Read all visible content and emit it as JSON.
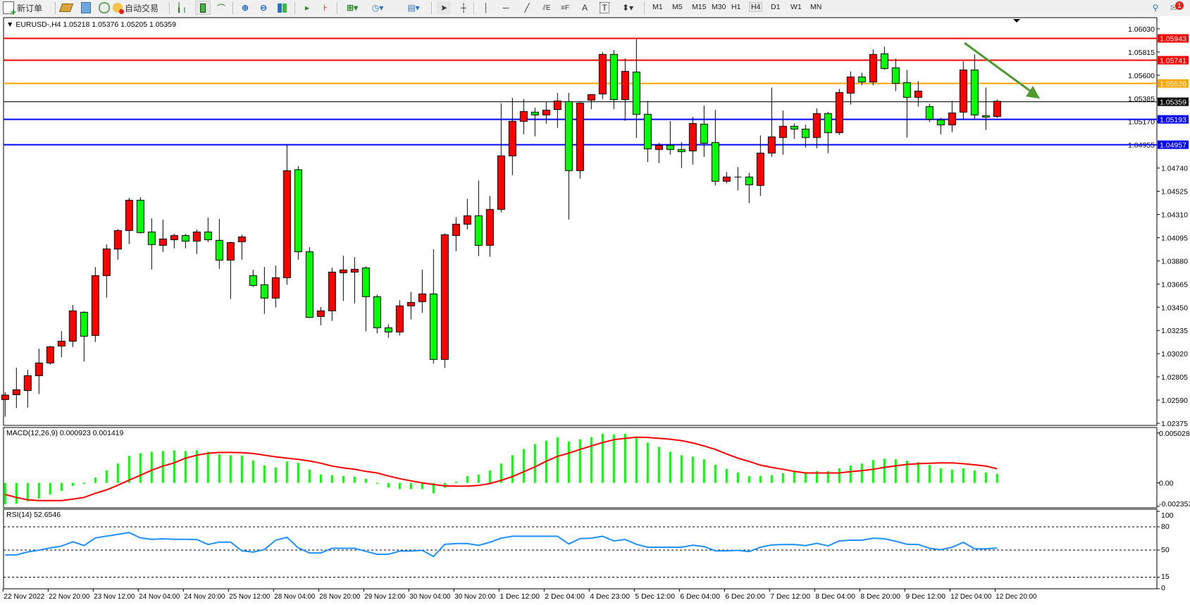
{
  "toolbar": {
    "new_order_label": "新订单",
    "auto_trading_label": "自动交易",
    "icons": [
      "new-order-icon",
      "market-watch-icon",
      "navigator-icon",
      "signals-icon",
      "auto-trading-icon",
      "bar-chart-icon",
      "candlestick-icon",
      "line-chart-icon",
      "zoom-in-icon",
      "zoom-out-icon",
      "tile-windows-icon",
      "auto-scroll-icon",
      "chart-shift-icon",
      "indicators-icon",
      "periods-icon",
      "templates-icon",
      "cursor-icon",
      "crosshair-icon",
      "vertical-line-icon",
      "horizontal-line-icon",
      "trendline-icon",
      "fibo-expansion-icon",
      "fibo-retracement-icon",
      "text-icon",
      "text-label-icon",
      "arrows-icon",
      "search-icon",
      "notifications-icon"
    ],
    "timeframes": [
      "M1",
      "M5",
      "M15",
      "M30",
      "H1",
      "H4",
      "D1",
      "W1",
      "MN"
    ],
    "active_timeframe": "H4",
    "notification_count": "1"
  },
  "chart_data": [
    {
      "type": "candlestick",
      "title": "EURUSD-,H4  1.05218 1.05376 1.05205 1.05359",
      "symbol": "EURUSD-",
      "timeframe": "H4",
      "last_ohlc": [
        "1.05218",
        "1.05376",
        "1.05205",
        "1.05359"
      ],
      "up_color": "#ff0000",
      "down_color": "#00ff00",
      "ylim": [
        1.02362,
        1.06134
      ],
      "y_ticks": [
        "1.06030",
        "1.05815",
        "1.05600",
        "1.05385",
        "1.05170",
        "1.04955",
        "1.04740",
        "1.04525",
        "1.04310",
        "1.04095",
        "1.03880",
        "1.03665",
        "1.03450",
        "1.03235",
        "1.03020",
        "1.02805",
        "1.02590",
        "1.02375"
      ],
      "x_tick_labels": [
        "22 Nov 2022",
        "22 Nov 20:00",
        "23 Nov 12:00",
        "24 Nov 04:00",
        "24 Nov 20:00",
        "25 Nov 12:00",
        "28 Nov 04:00",
        "28 Nov 20:00",
        "29 Nov 12:00",
        "30 Nov 04:00",
        "30 Nov 20:00",
        "1 Dec 12:00",
        "2 Dec 04:00",
        "4 Dec 23:00",
        "5 Dec 12:00",
        "6 Dec 04:00",
        "6 Dec 20:00",
        "7 Dec 12:00",
        "8 Dec 04:00",
        "8 Dec 20:00",
        "9 Dec 12:00",
        "12 Dec 04:00",
        "12 Dec 20:00"
      ],
      "x_tick_every_bars": 4,
      "ohlc": [
        [
          1.02595,
          1.02664,
          1.02436,
          1.02636
        ],
        [
          1.0264,
          1.0289,
          1.02516,
          1.02686
        ],
        [
          1.02679,
          1.02871,
          1.02521,
          1.02816
        ],
        [
          1.02816,
          1.03067,
          1.02647,
          1.02934
        ],
        [
          1.02934,
          1.03093,
          1.02919,
          1.03084
        ],
        [
          1.03091,
          1.0323,
          1.02986,
          1.03136
        ],
        [
          1.03136,
          1.03471,
          1.03082,
          1.03417
        ],
        [
          1.03404,
          1.03413,
          1.02947,
          1.03182
        ],
        [
          1.03189,
          1.03822,
          1.03128,
          1.03743
        ],
        [
          1.03743,
          1.04033,
          1.03539,
          1.03991
        ],
        [
          1.03989,
          1.04174,
          1.03891,
          1.04161
        ],
        [
          1.04161,
          1.04464,
          1.04035,
          1.04442
        ],
        [
          1.04442,
          1.0447,
          1.04133,
          1.04142
        ],
        [
          1.04148,
          1.04274,
          1.038,
          1.04031
        ],
        [
          1.04024,
          1.04261,
          1.03963,
          1.04083
        ],
        [
          1.04076,
          1.04131,
          1.03996,
          1.04115
        ],
        [
          1.04115,
          1.04131,
          1.03996,
          1.04063
        ],
        [
          1.04063,
          1.0417,
          1.03944,
          1.04148
        ],
        [
          1.04148,
          1.04281,
          1.04055,
          1.04076
        ],
        [
          1.0407,
          1.04268,
          1.03806,
          1.03887
        ],
        [
          1.03887,
          1.04057,
          1.03526,
          1.0405
        ],
        [
          1.04057,
          1.04122,
          1.03891,
          1.04102
        ],
        [
          1.03743,
          1.03798,
          1.03637,
          1.03652
        ],
        [
          1.03659,
          1.03824,
          1.03389,
          1.03535
        ],
        [
          1.03535,
          1.03837,
          1.03448,
          1.03724
        ],
        [
          1.03724,
          1.04955,
          1.03659,
          1.04716
        ],
        [
          1.04725,
          1.04757,
          1.03891,
          1.03965
        ],
        [
          1.03965,
          1.04007,
          1.0335,
          1.03356
        ],
        [
          1.03365,
          1.03452,
          1.03284,
          1.03417
        ],
        [
          1.03417,
          1.03817,
          1.03323,
          1.03776
        ],
        [
          1.0377,
          1.03928,
          1.03508,
          1.03796
        ],
        [
          1.03776,
          1.03915,
          1.03487,
          1.03802
        ],
        [
          1.03815,
          1.03828,
          1.03226,
          1.03548
        ],
        [
          1.03548,
          1.03567,
          1.03208,
          1.0326
        ],
        [
          1.0326,
          1.03293,
          1.03167,
          1.03221
        ],
        [
          1.03221,
          1.03515,
          1.03189,
          1.03463
        ],
        [
          1.03463,
          1.03593,
          1.03339,
          1.03495
        ],
        [
          1.03502,
          1.03798,
          1.03398,
          1.03574
        ],
        [
          1.03574,
          1.03987,
          1.02928,
          1.02967
        ],
        [
          1.02967,
          1.04135,
          1.02888,
          1.04122
        ],
        [
          1.04115,
          1.04285,
          1.0397,
          1.0422
        ],
        [
          1.0422,
          1.04455,
          1.04172,
          1.04298
        ],
        [
          1.04298,
          1.04625,
          1.03924,
          1.04024
        ],
        [
          1.04024,
          1.04481,
          1.03918,
          1.04357
        ],
        [
          1.04357,
          1.0534,
          1.04329,
          1.04853
        ],
        [
          1.04853,
          1.0539,
          1.04675,
          1.05173
        ],
        [
          1.05173,
          1.0538,
          1.05053,
          1.05264
        ],
        [
          1.05258,
          1.053,
          1.05034,
          1.05232
        ],
        [
          1.05232,
          1.0535,
          1.05151,
          1.05277
        ],
        [
          1.05282,
          1.05436,
          1.05112,
          1.05362
        ],
        [
          1.05356,
          1.05436,
          1.04263,
          1.04716
        ],
        [
          1.04716,
          1.05349,
          1.04642,
          1.05342
        ],
        [
          1.05369,
          1.05425,
          1.05286,
          1.05421
        ],
        [
          1.05427,
          1.05815,
          1.05379,
          1.05793
        ],
        [
          1.05793,
          1.05834,
          1.05286,
          1.05375
        ],
        [
          1.05375,
          1.05756,
          1.05177,
          1.05636
        ],
        [
          1.0563,
          1.05934,
          1.0502,
          1.05238
        ],
        [
          1.05238,
          1.05362,
          1.04796,
          1.04918
        ],
        [
          1.04912,
          1.04973,
          1.04786,
          1.04951
        ],
        [
          1.04951,
          1.05175,
          1.04864,
          1.04912
        ],
        [
          1.04912,
          1.04979,
          1.0474,
          1.04892
        ],
        [
          1.04899,
          1.05214,
          1.04772,
          1.05153
        ],
        [
          1.05147,
          1.05319,
          1.04844,
          1.0497
        ],
        [
          1.04977,
          1.05279,
          1.04579,
          1.04618
        ],
        [
          1.04618,
          1.04703,
          1.04598,
          1.04657
        ],
        [
          1.04657,
          1.04749,
          1.04533,
          1.04657
        ],
        [
          1.04657,
          1.04696,
          1.04416,
          1.04585
        ],
        [
          1.04579,
          1.05042,
          1.04481,
          1.04879
        ],
        [
          1.04879,
          1.05486,
          1.04844,
          1.05029
        ],
        [
          1.05023,
          1.05273,
          1.04864,
          1.05127
        ],
        [
          1.05127,
          1.05153,
          1.0501,
          1.05101
        ],
        [
          1.05101,
          1.05142,
          1.04929,
          1.05023
        ],
        [
          1.05023,
          1.05292,
          1.04923,
          1.05245
        ],
        [
          1.05245,
          1.0526,
          1.04877,
          1.05068
        ],
        [
          1.05068,
          1.05473,
          1.05047,
          1.0544
        ],
        [
          1.05434,
          1.05636,
          1.05327,
          1.05584
        ],
        [
          1.05584,
          1.05623,
          1.05506,
          1.05538
        ],
        [
          1.05538,
          1.05839,
          1.05506,
          1.05793
        ],
        [
          1.05799,
          1.05865,
          1.05651,
          1.05662
        ],
        [
          1.05669,
          1.05754,
          1.05453,
          1.05525
        ],
        [
          1.05532,
          1.05649,
          1.05023,
          1.05395
        ],
        [
          1.05395,
          1.05545,
          1.05308,
          1.05453
        ],
        [
          1.0531,
          1.05336,
          1.05166,
          1.05192
        ],
        [
          1.05186,
          1.05205,
          1.05053,
          1.0514
        ],
        [
          1.0514,
          1.05362,
          1.05073,
          1.05251
        ],
        [
          1.05258,
          1.05728,
          1.05192,
          1.05649
        ],
        [
          1.05649,
          1.05793,
          1.05192,
          1.05232
        ],
        [
          1.05225,
          1.05486,
          1.05092,
          1.05212
        ],
        [
          1.05218,
          1.05376,
          1.05205,
          1.05359
        ]
      ],
      "horizontal_lines": [
        {
          "price": 1.05943,
          "label": "1.05943",
          "color": "#ff0000"
        },
        {
          "price": 1.05741,
          "label": "1.05741",
          "color": "#ff0000"
        },
        {
          "price": 1.05526,
          "label": "1.05526",
          "color": "#ffa500"
        },
        {
          "price": 1.05359,
          "label": "1.05359",
          "color": "#000000",
          "kind": "bid"
        },
        {
          "price": 1.05193,
          "label": "1.05193",
          "color": "#0000ff"
        },
        {
          "price": 1.04957,
          "label": "1.04957",
          "color": "#0000ff"
        }
      ],
      "annotation_arrow_color": "#4f9a2e"
    },
    {
      "type": "bar+line",
      "title": "MACD(12,26,9) 0.000923 0.001419",
      "ylim": [
        -0.00244,
        0.00551
      ],
      "y_ticks": [
        {
          "value": 0.005028,
          "label": "0.005028"
        },
        {
          "value": 0,
          "label": "0.00"
        },
        {
          "value": -0.002353,
          "label": "-0.002353"
        }
      ],
      "histogram_color": "#00ff00",
      "signal_color": "#ff0000",
      "histogram": [
        -0.00214,
        -0.00209,
        -0.00186,
        -0.00158,
        -0.00116,
        -0.00081,
        -0.0003,
        -0.00012,
        0.00054,
        0.00126,
        0.00195,
        0.00272,
        0.003,
        0.00314,
        0.00321,
        0.00328,
        0.00321,
        0.00328,
        0.00314,
        0.00288,
        0.00279,
        0.00275,
        0.00226,
        0.00175,
        0.00156,
        0.00216,
        0.00202,
        0.00133,
        0.00084,
        0.00077,
        0.0007,
        0.00063,
        0.00042,
        -0.0001,
        -0.00047,
        -0.00063,
        -0.00063,
        -0.00063,
        -0.00105,
        -0.00049,
        0.00014,
        0.0007,
        0.00084,
        0.00126,
        0.00195,
        0.00279,
        0.00342,
        0.00391,
        0.00426,
        0.00461,
        0.00419,
        0.0044,
        0.00461,
        0.00496,
        0.00489,
        0.00496,
        0.00465,
        0.00405,
        0.00363,
        0.00314,
        0.00279,
        0.00265,
        0.00237,
        0.00182,
        0.0014,
        0.00105,
        0.0007,
        0.0007,
        0.00077,
        0.00098,
        0.00112,
        0.00098,
        0.00119,
        0.00119,
        0.00147,
        0.00175,
        0.00195,
        0.0023,
        0.00244,
        0.00237,
        0.00223,
        0.00209,
        0.00182,
        0.00147,
        0.00133,
        0.00147,
        0.00126,
        0.00105,
        0.000923
      ],
      "signal": [
        -0.00116,
        -0.00147,
        -0.0017,
        -0.00179,
        -0.00179,
        -0.00179,
        -0.00163,
        -0.00147,
        -0.00105,
        -0.0007,
        -0.00023,
        0.00028,
        0.00077,
        0.00128,
        0.0017,
        0.00202,
        0.00249,
        0.00279,
        0.00298,
        0.00307,
        0.00307,
        0.00305,
        0.00296,
        0.00279,
        0.00263,
        0.00249,
        0.00237,
        0.00221,
        0.00198,
        0.0017,
        0.00151,
        0.00137,
        0.00116,
        0.001,
        0.0007,
        0.00042,
        0.00021,
        0,
        -0.00016,
        -0.0003,
        -0.00033,
        -0.00033,
        -0.00026,
        -7e-05,
        0.00026,
        0.00063,
        0.00112,
        0.00161,
        0.00219,
        0.00268,
        0.003,
        0.00337,
        0.00372,
        0.00407,
        0.00435,
        0.00449,
        0.00461,
        0.00458,
        0.00449,
        0.0044,
        0.00426,
        0.00403,
        0.00372,
        0.00337,
        0.00291,
        0.00249,
        0.00216,
        0.00179,
        0.00156,
        0.00137,
        0.00116,
        0.001,
        0.001,
        0.001,
        0.001,
        0.00114,
        0.00123,
        0.00137,
        0.00156,
        0.00172,
        0.00186,
        0.00193,
        0.00198,
        0.00202,
        0.00202,
        0.00193,
        0.00182,
        0.0017,
        0.001419
      ]
    },
    {
      "type": "line",
      "title": "RSI(14) 52.6546",
      "ylim": [
        0,
        100
      ],
      "y_ticks": [
        "100",
        "80",
        "50",
        "15",
        "0"
      ],
      "levels": [
        80,
        50,
        15
      ],
      "line_color": "#1e90ff",
      "values": [
        43.7,
        43.7,
        47.6,
        49.8,
        52.8,
        55.2,
        60.6,
        55.8,
        65.6,
        68,
        70.2,
        72.6,
        65.6,
        63.9,
        64.5,
        63.9,
        63.9,
        63.6,
        57.2,
        60.3,
        60.3,
        49.1,
        47.4,
        50.7,
        62.7,
        66.5,
        52.9,
        46.3,
        46.3,
        52.3,
        52.3,
        52.3,
        48.4,
        44.5,
        44.5,
        48.7,
        48.7,
        49.6,
        41.7,
        57.5,
        58.4,
        58.4,
        56,
        60,
        65.4,
        67.8,
        67.8,
        67.8,
        67.8,
        67.8,
        57.9,
        64.8,
        65.4,
        67.8,
        61.8,
        63.6,
        57.5,
        53.6,
        53.6,
        53.6,
        53.6,
        56.3,
        54.5,
        49,
        49,
        49.6,
        48.1,
        53.6,
        56.6,
        57.2,
        57.2,
        55.7,
        58.7,
        55.4,
        61.8,
        62.7,
        62.7,
        65.4,
        64.5,
        61.5,
        57.5,
        57.2,
        52.3,
        50.5,
        53.6,
        60,
        51.6,
        51.6,
        52.65
      ]
    }
  ]
}
